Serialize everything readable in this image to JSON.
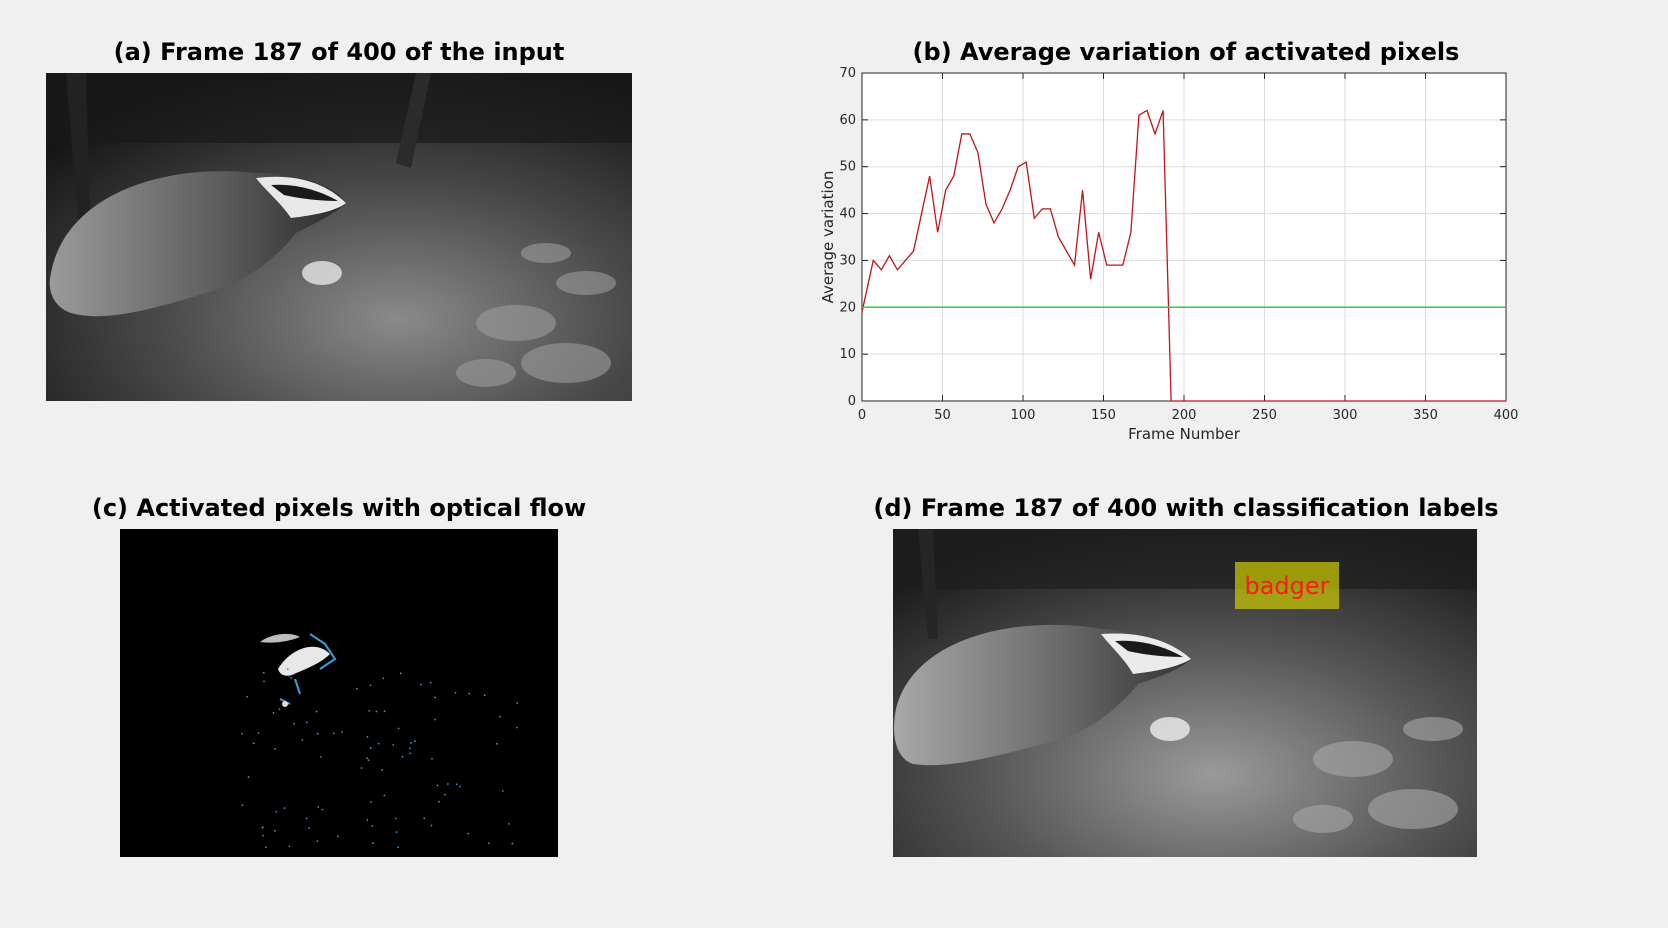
{
  "panels": {
    "a": {
      "title": "(a) Frame 187 of 400 of the input"
    },
    "b": {
      "title": "(b) Average variation of activated pixels"
    },
    "c": {
      "title": "(c) Activated pixels with optical flow"
    },
    "d": {
      "title": "(d) Frame 187 of 400 with classification labels",
      "label": "badger"
    }
  },
  "colors": {
    "series": "#c0141c",
    "threshold": "#2ecc40",
    "grid": "#dcdcdc",
    "label_bg": "#cdcd00",
    "label_text": "#ff1a1a"
  },
  "chart_data": {
    "type": "line",
    "title": "(b) Average variation of activated pixels",
    "xlabel": "Frame Number",
    "ylabel": "Average variation",
    "xlim": [
      0,
      400
    ],
    "ylim": [
      0,
      70
    ],
    "xticks": [
      0,
      50,
      100,
      150,
      200,
      250,
      300,
      350,
      400
    ],
    "yticks": [
      0,
      10,
      20,
      30,
      40,
      50,
      60,
      70
    ],
    "grid": true,
    "series": [
      {
        "color": "#c0141c",
        "x": [
          0,
          7,
          12,
          17,
          22,
          27,
          32,
          37,
          42,
          47,
          52,
          57,
          62,
          67,
          72,
          77,
          82,
          87,
          92,
          97,
          102,
          107,
          112,
          117,
          122,
          127,
          132,
          137,
          142,
          147,
          152,
          157,
          162,
          167,
          172,
          177,
          182,
          187,
          192,
          200,
          250,
          300,
          350,
          400
        ],
        "y": [
          19,
          30,
          28,
          31,
          28,
          30,
          32,
          40,
          48,
          36,
          45,
          48,
          57,
          57,
          53,
          42,
          38,
          41,
          45,
          50,
          51,
          39,
          41,
          41,
          35,
          32,
          29,
          45,
          26,
          36,
          29,
          29,
          29,
          36,
          61,
          62,
          57,
          62,
          0,
          0,
          0,
          0,
          0,
          0
        ]
      },
      {
        "color": "#2ecc40",
        "x": [
          0,
          400
        ],
        "y": [
          20,
          20
        ]
      }
    ]
  }
}
